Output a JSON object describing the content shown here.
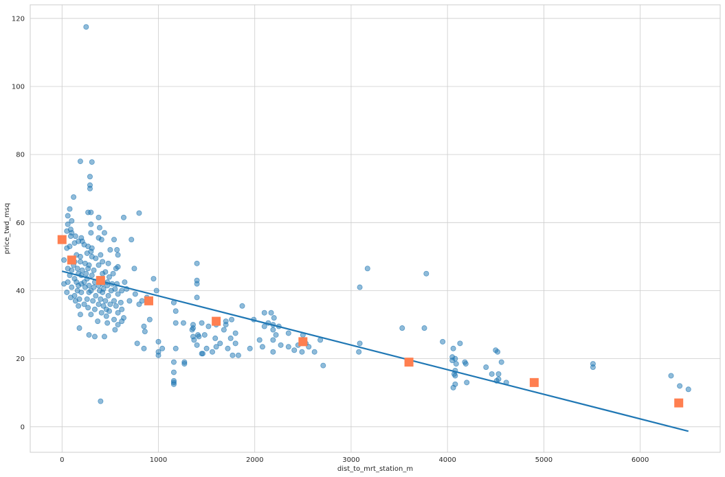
{
  "chart_data": {
    "type": "scatter",
    "title": "",
    "xlabel": "dist_to_mrt_station_m",
    "ylabel": "price_twd_msq",
    "xlim": [
      -330,
      6830
    ],
    "ylim": [
      -7.5,
      124
    ],
    "xticks": [
      0,
      1000,
      2000,
      3000,
      4000,
      5000,
      6000
    ],
    "yticks": [
      0,
      20,
      40,
      60,
      80,
      100,
      120
    ],
    "grid": true,
    "colors": {
      "points": "#1f77b4",
      "fit_line": "#1f77b4",
      "bin_markers": "#ff7f50"
    },
    "scatter_points": [
      [
        250,
        117.5
      ],
      [
        190,
        78
      ],
      [
        310,
        77.8
      ],
      [
        290,
        73.5
      ],
      [
        290,
        71
      ],
      [
        290,
        70
      ],
      [
        120,
        67.5
      ],
      [
        80,
        64
      ],
      [
        270,
        63
      ],
      [
        300,
        63
      ],
      [
        800,
        62.8
      ],
      [
        60,
        62
      ],
      [
        380,
        61.5
      ],
      [
        640,
        61.5
      ],
      [
        100,
        60.5
      ],
      [
        60,
        59.5
      ],
      [
        300,
        59.5
      ],
      [
        390,
        58.5
      ],
      [
        90,
        58
      ],
      [
        50,
        57.5
      ],
      [
        100,
        57
      ],
      [
        300,
        57
      ],
      [
        440,
        57
      ],
      [
        90,
        56
      ],
      [
        140,
        56
      ],
      [
        200,
        55.5
      ],
      [
        380,
        55.5
      ],
      [
        410,
        55
      ],
      [
        720,
        55
      ],
      [
        540,
        55
      ],
      [
        170,
        54.5
      ],
      [
        210,
        54.5
      ],
      [
        130,
        54
      ],
      [
        230,
        53.5
      ],
      [
        270,
        53
      ],
      [
        80,
        53
      ],
      [
        50,
        52.5
      ],
      [
        310,
        52.5
      ],
      [
        500,
        52
      ],
      [
        570,
        52
      ],
      [
        300,
        51.5
      ],
      [
        260,
        51
      ],
      [
        150,
        50.5
      ],
      [
        400,
        50.5
      ],
      [
        580,
        50.5
      ],
      [
        190,
        50
      ],
      [
        310,
        50
      ],
      [
        350,
        49.5
      ],
      [
        20,
        49
      ],
      [
        130,
        48.5
      ],
      [
        190,
        48.5
      ],
      [
        420,
        48.5
      ],
      [
        240,
        48
      ],
      [
        480,
        48
      ],
      [
        1400,
        48
      ],
      [
        120,
        47.5
      ],
      [
        280,
        47.5
      ],
      [
        380,
        47.5
      ],
      [
        580,
        47
      ],
      [
        60,
        46.5
      ],
      [
        160,
        46.5
      ],
      [
        270,
        46.5
      ],
      [
        560,
        46.5
      ],
      [
        750,
        46.5
      ],
      [
        3170,
        46.5
      ],
      [
        100,
        46
      ],
      [
        210,
        46
      ],
      [
        330,
        46
      ],
      [
        450,
        45.5
      ],
      [
        170,
        45
      ],
      [
        250,
        45
      ],
      [
        420,
        45
      ],
      [
        530,
        45
      ],
      [
        3780,
        45
      ],
      [
        80,
        44.5
      ],
      [
        200,
        44.5
      ],
      [
        310,
        44.5
      ],
      [
        490,
        44
      ],
      [
        130,
        43.5
      ],
      [
        260,
        43.5
      ],
      [
        380,
        43.5
      ],
      [
        950,
        43.5
      ],
      [
        1400,
        43
      ],
      [
        60,
        42.5
      ],
      [
        150,
        42.5
      ],
      [
        230,
        42.5
      ],
      [
        340,
        42.5
      ],
      [
        470,
        42.5
      ],
      [
        650,
        42.5
      ],
      [
        20,
        42
      ],
      [
        200,
        42
      ],
      [
        420,
        42
      ],
      [
        520,
        42
      ],
      [
        570,
        42
      ],
      [
        1400,
        42
      ],
      [
        170,
        41.5
      ],
      [
        280,
        41.5
      ],
      [
        380,
        41.5
      ],
      [
        470,
        41.5
      ],
      [
        3090,
        41
      ],
      [
        100,
        41
      ],
      [
        240,
        41
      ],
      [
        330,
        41
      ],
      [
        430,
        40.5
      ],
      [
        550,
        40.5
      ],
      [
        670,
        40.5
      ],
      [
        160,
        40
      ],
      [
        300,
        40
      ],
      [
        390,
        40
      ],
      [
        510,
        40
      ],
      [
        620,
        40
      ],
      [
        980,
        40
      ],
      [
        50,
        39.5
      ],
      [
        200,
        39.5
      ],
      [
        280,
        39.5
      ],
      [
        420,
        39.5
      ],
      [
        580,
        39
      ],
      [
        760,
        39
      ],
      [
        130,
        38.5
      ],
      [
        350,
        38.5
      ],
      [
        480,
        38.5
      ],
      [
        880,
        38
      ],
      [
        1400,
        38
      ],
      [
        90,
        38
      ],
      [
        180,
        37.5
      ],
      [
        260,
        37.5
      ],
      [
        400,
        37.5
      ],
      [
        540,
        37
      ],
      [
        700,
        37
      ],
      [
        830,
        37
      ],
      [
        140,
        37
      ],
      [
        320,
        37
      ],
      [
        450,
        37
      ],
      [
        610,
        36.5
      ],
      [
        1160,
        36.5
      ],
      [
        230,
        36
      ],
      [
        380,
        36
      ],
      [
        500,
        36
      ],
      [
        800,
        36
      ],
      [
        170,
        35.5
      ],
      [
        430,
        35.5
      ],
      [
        560,
        35.5
      ],
      [
        1870,
        35.5
      ],
      [
        270,
        35
      ],
      [
        340,
        34.5
      ],
      [
        460,
        34.5
      ],
      [
        620,
        34.5
      ],
      [
        490,
        34
      ],
      [
        1180,
        34
      ],
      [
        580,
        33.5
      ],
      [
        410,
        33.5
      ],
      [
        190,
        33
      ],
      [
        300,
        33
      ],
      [
        2100,
        33.5
      ],
      [
        2170,
        33.5
      ],
      [
        460,
        32.5
      ],
      [
        640,
        32
      ],
      [
        540,
        31.5
      ],
      [
        910,
        31.5
      ],
      [
        1760,
        31.5
      ],
      [
        1990,
        31.5
      ],
      [
        2200,
        32
      ],
      [
        370,
        31
      ],
      [
        620,
        31
      ],
      [
        470,
        30.5
      ],
      [
        1180,
        30.5
      ],
      [
        1450,
        30.5
      ],
      [
        1700,
        31
      ],
      [
        1700,
        30
      ],
      [
        2140,
        30.5
      ],
      [
        580,
        30
      ],
      [
        1360,
        30
      ],
      [
        1260,
        30.5
      ],
      [
        1600,
        30
      ],
      [
        2190,
        30
      ],
      [
        2100,
        29.5
      ],
      [
        850,
        29.5
      ],
      [
        1520,
        29.5
      ],
      [
        1360,
        29
      ],
      [
        180,
        29
      ],
      [
        2250,
        29.5
      ],
      [
        3530,
        29
      ],
      [
        3760,
        29
      ],
      [
        550,
        28.5
      ],
      [
        1350,
        28.5
      ],
      [
        1680,
        28.5
      ],
      [
        2190,
        28.5
      ],
      [
        860,
        28
      ],
      [
        2350,
        27.5
      ],
      [
        1410,
        27
      ],
      [
        1800,
        27.5
      ],
      [
        1480,
        27
      ],
      [
        2220,
        27
      ],
      [
        1360,
        26.5
      ],
      [
        280,
        27
      ],
      [
        340,
        26.5
      ],
      [
        440,
        26.5
      ],
      [
        1420,
        26.5
      ],
      [
        1590,
        26
      ],
      [
        1750,
        26
      ],
      [
        2500,
        27
      ],
      [
        2680,
        25.5
      ],
      [
        1000,
        25
      ],
      [
        1370,
        25.5
      ],
      [
        2050,
        25.5
      ],
      [
        2190,
        25.5
      ],
      [
        3090,
        24.5
      ],
      [
        3950,
        25
      ],
      [
        4130,
        24.5
      ],
      [
        2530,
        24.5
      ],
      [
        780,
        24.5
      ],
      [
        1640,
        24.5
      ],
      [
        1800,
        24.5
      ],
      [
        1400,
        24
      ],
      [
        2270,
        24
      ],
      [
        1600,
        23.5
      ],
      [
        2450,
        24
      ],
      [
        1040,
        23
      ],
      [
        1180,
        23
      ],
      [
        1500,
        23
      ],
      [
        1720,
        23
      ],
      [
        1950,
        23
      ],
      [
        2080,
        23.5
      ],
      [
        2350,
        23.5
      ],
      [
        2560,
        23.5
      ],
      [
        850,
        23
      ],
      [
        4060,
        23
      ],
      [
        4500,
        22.5
      ],
      [
        4520,
        22
      ],
      [
        1000,
        22
      ],
      [
        2410,
        22.5
      ],
      [
        1450,
        21.5
      ],
      [
        1460,
        21.5
      ],
      [
        1560,
        22
      ],
      [
        1770,
        21
      ],
      [
        1830,
        21
      ],
      [
        2190,
        22
      ],
      [
        2490,
        22
      ],
      [
        2620,
        22
      ],
      [
        3080,
        22
      ],
      [
        4050,
        20.5
      ],
      [
        4080,
        20
      ],
      [
        1000,
        21
      ],
      [
        4050,
        19.5
      ],
      [
        4180,
        19
      ],
      [
        4560,
        19
      ],
      [
        1160,
        19
      ],
      [
        1270,
        19
      ],
      [
        1270,
        18.5
      ],
      [
        2710,
        18
      ],
      [
        4090,
        18.5
      ],
      [
        4190,
        18.5
      ],
      [
        5510,
        18.5
      ],
      [
        5510,
        17.5
      ],
      [
        4400,
        17.5
      ],
      [
        4080,
        16.5
      ],
      [
        1160,
        16
      ],
      [
        4070,
        15.5
      ],
      [
        4460,
        15.5
      ],
      [
        4530,
        15.5
      ],
      [
        6320,
        15
      ],
      [
        4080,
        15
      ],
      [
        4530,
        14
      ],
      [
        4510,
        13.5
      ],
      [
        1160,
        13.5
      ],
      [
        1160,
        13
      ],
      [
        1160,
        12.5
      ],
      [
        4200,
        13
      ],
      [
        4610,
        13
      ],
      [
        4080,
        12.5
      ],
      [
        6410,
        12
      ],
      [
        4060,
        11.5
      ],
      [
        6500,
        11
      ],
      [
        400,
        7.5
      ]
    ],
    "fit_line": [
      [
        0,
        45.7
      ],
      [
        6500,
        -1.3
      ]
    ],
    "bin_markers": [
      [
        0,
        55
      ],
      [
        100,
        49
      ],
      [
        400,
        43
      ],
      [
        900,
        37
      ],
      [
        1600,
        31
      ],
      [
        2500,
        25
      ],
      [
        3600,
        19
      ],
      [
        4900,
        13
      ],
      [
        6400,
        7
      ]
    ]
  }
}
